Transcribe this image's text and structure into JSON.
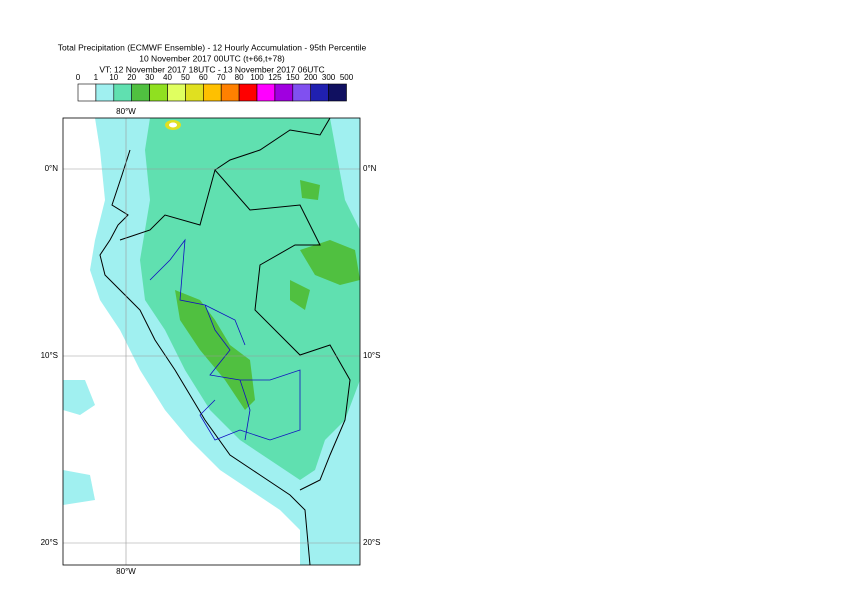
{
  "title": [
    "Total Precipitation (ECMWF Ensemble) - 12 Hourly Accumulation - 95th Percentile",
    "10 November 2017 00UTC (t+66,t+78)",
    "VT: 12 November 2017 18UTC - 13 November 2017 06UTC"
  ],
  "colorbar": {
    "levels": [
      0,
      1,
      10,
      20,
      30,
      40,
      50,
      60,
      70,
      80,
      100,
      125,
      150,
      200,
      300,
      500
    ],
    "colors": [
      "#ffffff",
      "#a0f0f0",
      "#60e0b0",
      "#50c040",
      "#90e020",
      "#e0ff60",
      "#e0e020",
      "#ffc000",
      "#ff8000",
      "#ff0000",
      "#ff00ff",
      "#a000e0",
      "#8050f0",
      "#2020b0",
      "#101060"
    ]
  },
  "map": {
    "lon_labels": [
      "80°W"
    ],
    "lat_labels": [
      "0°N",
      "10°S",
      "20°S"
    ]
  }
}
